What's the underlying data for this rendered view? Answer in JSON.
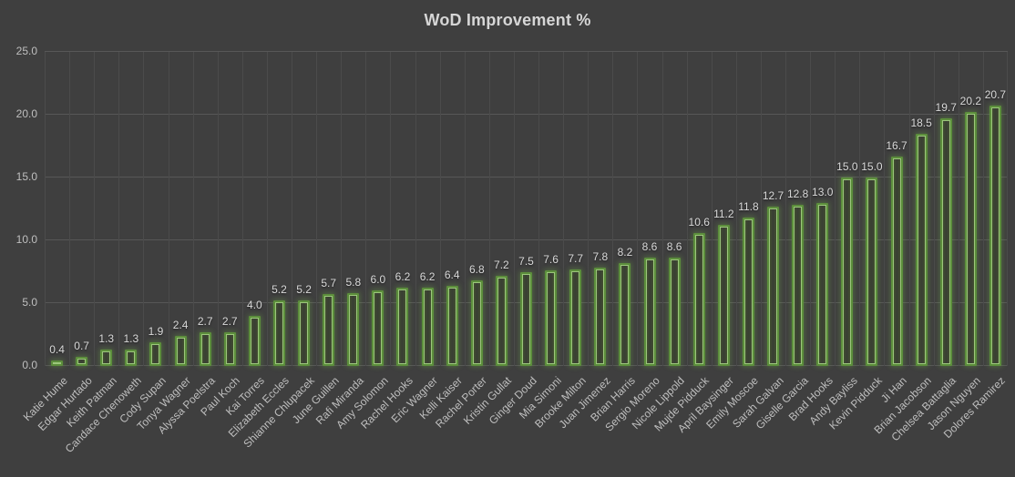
{
  "chart_data": {
    "type": "bar",
    "title": "WoD Improvement %",
    "xlabel": "",
    "ylabel": "",
    "ylim": [
      0,
      25
    ],
    "yticks": [
      0,
      5,
      10,
      15,
      20,
      25
    ],
    "ytick_labels": [
      "0.0",
      "5.0",
      "10.0",
      "15.0",
      "20.0",
      "25.0"
    ],
    "grid": true,
    "legend": false,
    "data_labels": true,
    "categories": [
      "Katie Hume",
      "Edgar Hurtado",
      "Keith Patman",
      "Candace Chenoweth",
      "Cody Supan",
      "Tonya Wagner",
      "Alyssa Poelstra",
      "Paul Koch",
      "Kai Torres",
      "Elizabeth Eccles",
      "Shianne Chlupacek",
      "June Guillen",
      "Rafi Miranda",
      "Amy Solomon",
      "Rachel Hooks",
      "Eric Wagner",
      "Kelli Kaiser",
      "Rachel Porter",
      "Kristin Gullat",
      "Ginger Doud",
      "Mia Simoni",
      "Brooke Milton",
      "Juan Jimenez",
      "Brian Harris",
      "Sergio Moreno",
      "Nicole Lippold",
      "Mujde Pidduck",
      "April Baysinger",
      "Emily Moscoe",
      "Sarah Galvan",
      "Giselle Garcia",
      "Brad Hooks",
      "Andy Bayliss",
      "Kevin Pidduck",
      "Ji Han",
      "Brian Jacobson",
      "Chelsea Battaglia",
      "Jason Nguyen",
      "Dolores Ramirez"
    ],
    "values": [
      0.4,
      0.7,
      1.3,
      1.3,
      1.9,
      2.4,
      2.7,
      2.7,
      4.0,
      5.2,
      5.2,
      5.7,
      5.8,
      6.0,
      6.2,
      6.2,
      6.4,
      6.8,
      7.2,
      7.5,
      7.6,
      7.7,
      7.8,
      8.2,
      8.6,
      8.6,
      10.6,
      11.2,
      11.8,
      12.7,
      12.8,
      13.0,
      15.0,
      15.0,
      16.7,
      18.5,
      19.7,
      20.2,
      20.7
    ],
    "colors": {
      "background": "#3f3f3f",
      "bar_border": "#5c8e3c",
      "bar_inner_highlight": "#9cc77c",
      "bar_fill_edge": "#46552f",
      "bar_fill_center": "#3a4033",
      "grid_horizontal": "#575757",
      "grid_vertical": "#4b4b4b",
      "title_color": "#d6d6d6",
      "tick_label_color": "#bfbfbf",
      "value_label_color": "#d9d9d9"
    }
  }
}
